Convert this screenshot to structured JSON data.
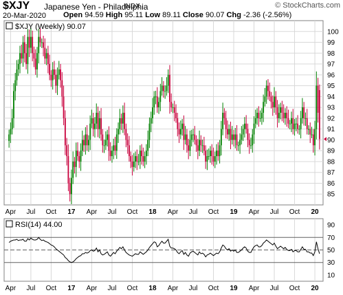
{
  "header": {
    "symbol": "$XJY",
    "name": "Japanese Yen - Philadelphia",
    "exchange": "INDX",
    "logo": "© StockCharts.com",
    "date": "20-Mar-2020",
    "open_label": "Open",
    "open": "94.59",
    "high_label": "High",
    "high": "95.11",
    "low_label": "Low",
    "low": "89.11",
    "close_label": "Close",
    "close": "90.07",
    "chg_label": "Chg",
    "chg": "-2.36 (-2.56%)"
  },
  "colors": {
    "up": "#008000",
    "down": "#c8003c",
    "grid": "#d8d8d8",
    "border": "#808080",
    "rsi_line": "#000000"
  },
  "chart_data": [
    {
      "type": "bar",
      "legend": "$XJY (Weekly) 90.07",
      "yaxis_side": "right",
      "ylim": [
        84,
        101
      ],
      "yticks": [
        85,
        86,
        87,
        88,
        89,
        90,
        91,
        92,
        93,
        94,
        95,
        96,
        97,
        98,
        99,
        100
      ],
      "x_labels": [
        "Apr",
        "Jul",
        "Oct",
        "17",
        "Apr",
        "Jul",
        "Oct",
        "18",
        "Apr",
        "Jul",
        "Oct",
        "19",
        "Apr",
        "Jul",
        "Oct",
        "20"
      ],
      "x_label_weeks": [
        1,
        14,
        27,
        40,
        53,
        66,
        79,
        92,
        105,
        118,
        131,
        144,
        157,
        170,
        183,
        196
      ],
      "closes": [
        90.5,
        91,
        92,
        94.5,
        95.5,
        96.5,
        97,
        98,
        97.5,
        99,
        98,
        97,
        99.5,
        98.5,
        99.5,
        98,
        97.5,
        96.5,
        98,
        99.5,
        99,
        99,
        98.5,
        97.5,
        98,
        97,
        96,
        95.5,
        96.5,
        96,
        95,
        96,
        96.5,
        95.5,
        94,
        92,
        89.5,
        88.5,
        86,
        85,
        86.5,
        88,
        87.5,
        89,
        88.5,
        88,
        89,
        90,
        89.5,
        90.5,
        89.5,
        90,
        91.5,
        92,
        91,
        91.5,
        92.5,
        91,
        92,
        90.5,
        89.5,
        89.5,
        90,
        90.5,
        89,
        88.5,
        89,
        89.5,
        89,
        90.5,
        91,
        92,
        91.5,
        92.5,
        91,
        90,
        89.5,
        88.5,
        88,
        87.5,
        88,
        88.5,
        88,
        88,
        89,
        88.5,
        88,
        88.5,
        89,
        90,
        91.5,
        92,
        93,
        94,
        94,
        93,
        93.5,
        94.5,
        95,
        94.5,
        94.5,
        95,
        96,
        93.5,
        93,
        93,
        92.5,
        92,
        91,
        90.5,
        91,
        91.5,
        90,
        90.5,
        89.5,
        89,
        90,
        90.5,
        90.5,
        90,
        89.5,
        89,
        90,
        89.5,
        89.5,
        89,
        88,
        88.5,
        88.5,
        89,
        88.5,
        88,
        88.5,
        89,
        88.5,
        89.5,
        91,
        92.5,
        92,
        91,
        90.5,
        91,
        90,
        90.5,
        90,
        90.5,
        89.5,
        89.5,
        90,
        90.5,
        91,
        91.5,
        91,
        90,
        89.5,
        89.5,
        90.5,
        91.5,
        92,
        92.5,
        92,
        92,
        92.5,
        93.5,
        94,
        95,
        94.5,
        94,
        93.5,
        93,
        94,
        93,
        92,
        92.5,
        93,
        92.5,
        92,
        92.5,
        92,
        91.5,
        91.5,
        92,
        91,
        91.5,
        91.5,
        91,
        91,
        92,
        93,
        92,
        92,
        91,
        91,
        90.5,
        90.5,
        89.5,
        91,
        95,
        92.5,
        90.07
      ],
      "last_week": {
        "open": 94.59,
        "high": 95.11,
        "low": 89.11,
        "close": 90.07
      }
    },
    {
      "type": "line",
      "legend": "RSI(14) 44.00",
      "yaxis_side": "right",
      "ylim": [
        0,
        100
      ],
      "yticks": [
        10,
        30,
        50,
        70,
        90
      ],
      "ref_lines": [
        30,
        50,
        70
      ],
      "x_labels": [
        "Apr",
        "Jul",
        "Oct",
        "17",
        "Apr",
        "Jul",
        "Oct",
        "18",
        "Apr",
        "Jul",
        "Oct",
        "19",
        "Apr",
        "Jul",
        "Oct",
        "20"
      ],
      "values": [
        62,
        64,
        65,
        66,
        66,
        67,
        65,
        66,
        66,
        67,
        64,
        64,
        68,
        66,
        69,
        67,
        66,
        66,
        67,
        70,
        67,
        65,
        66,
        64,
        63,
        62,
        60,
        58,
        57,
        55,
        52,
        50,
        48,
        46,
        44,
        42,
        38,
        36,
        33,
        31,
        30,
        31,
        33,
        36,
        38,
        40,
        41,
        44,
        44,
        46,
        45,
        46,
        49,
        50,
        48,
        49,
        53,
        47,
        50,
        44,
        42,
        43,
        45,
        47,
        42,
        40,
        43,
        46,
        44,
        48,
        51,
        54,
        52,
        55,
        50,
        46,
        44,
        42,
        41,
        40,
        42,
        44,
        43,
        43,
        47,
        45,
        43,
        45,
        47,
        50,
        54,
        57,
        60,
        63,
        62,
        55,
        57,
        61,
        64,
        61,
        61,
        64,
        67,
        56,
        53,
        53,
        52,
        50,
        46,
        44,
        47,
        49,
        43,
        46,
        42,
        40,
        45,
        47,
        48,
        46,
        44,
        42,
        47,
        44,
        45,
        43,
        39,
        42,
        43,
        45,
        43,
        41,
        43,
        45,
        44,
        47,
        53,
        58,
        56,
        52,
        50,
        52,
        48,
        50,
        48,
        50,
        46,
        46,
        48,
        50,
        53,
        55,
        53,
        48,
        46,
        46,
        51,
        55,
        57,
        58,
        55,
        55,
        57,
        61,
        63,
        66,
        64,
        62,
        60,
        58,
        61,
        56,
        52,
        54,
        56,
        54,
        52,
        54,
        51,
        49,
        49,
        51,
        47,
        49,
        49,
        47,
        47,
        51,
        55,
        51,
        51,
        47,
        47,
        45,
        45,
        41,
        47,
        63,
        52,
        44
      ]
    }
  ]
}
